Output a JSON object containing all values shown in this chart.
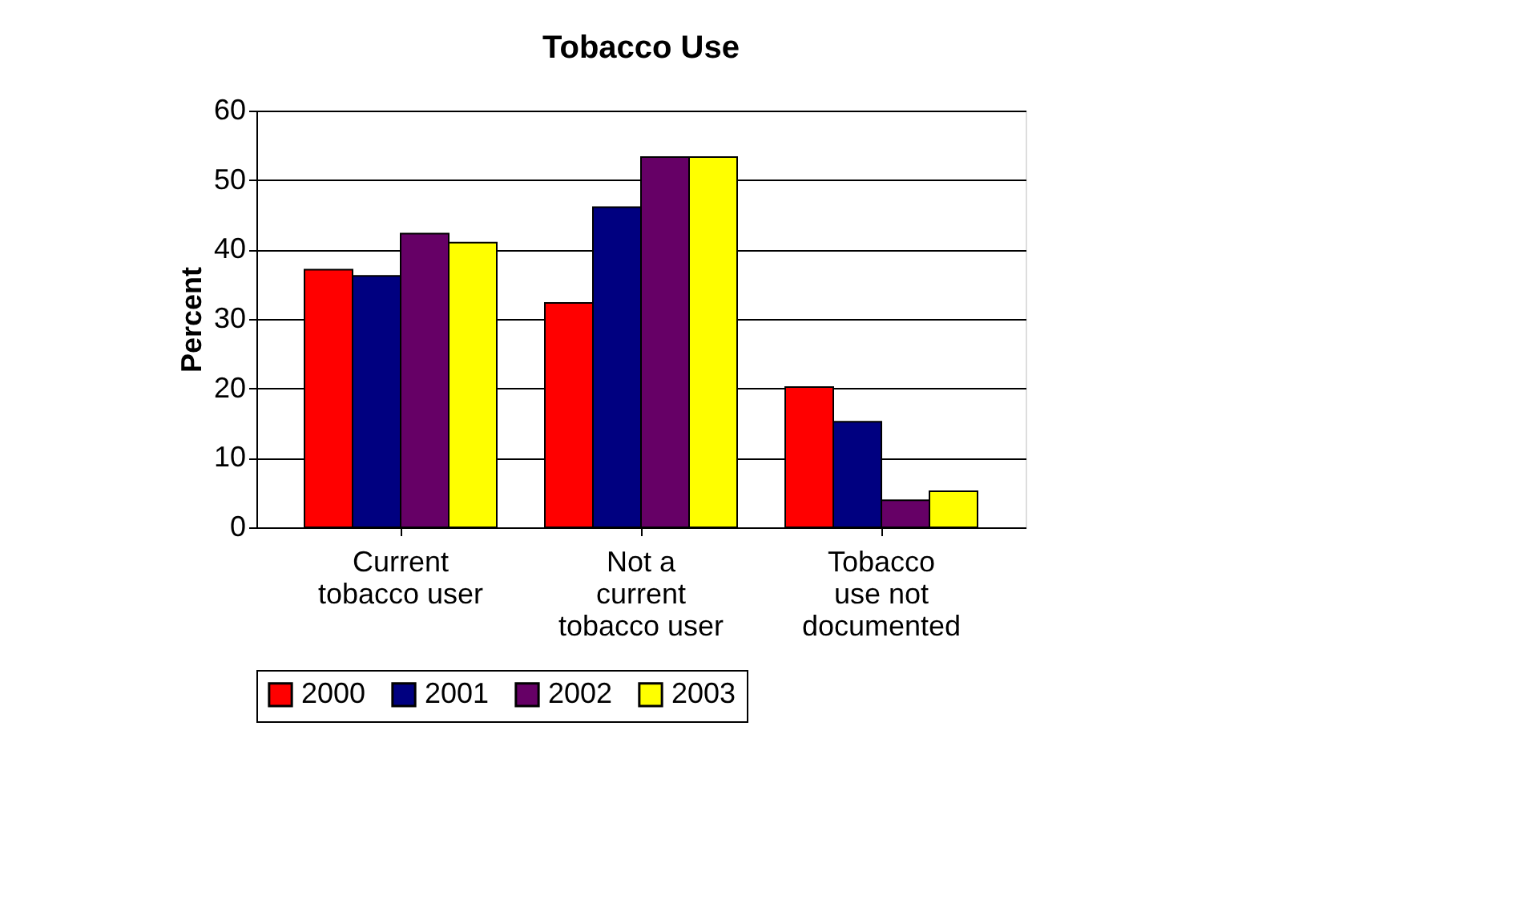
{
  "chart_data": {
    "type": "bar",
    "title": "Tobacco Use",
    "ylabel": "Percent",
    "categories": [
      "Current\ntobacco user",
      "Not a\ncurrent\ntobacco user",
      "Tobacco\nuse not\ndocumented"
    ],
    "series": [
      {
        "name": "2000",
        "color": "#ff0000",
        "values": [
          37.1,
          32.3,
          20.2
        ]
      },
      {
        "name": "2001",
        "color": "#000080",
        "values": [
          36.2,
          46.1,
          15.2
        ]
      },
      {
        "name": "2002",
        "color": "#660066",
        "values": [
          42.3,
          53.3,
          3.9
        ]
      },
      {
        "name": "2003",
        "color": "#ffff00",
        "values": [
          41,
          53.3,
          5.2
        ]
      }
    ],
    "ylim": [
      0,
      60
    ],
    "yticks": [
      0,
      10,
      20,
      30,
      40,
      50,
      60
    ],
    "grid": "y",
    "legend": "bottom"
  }
}
